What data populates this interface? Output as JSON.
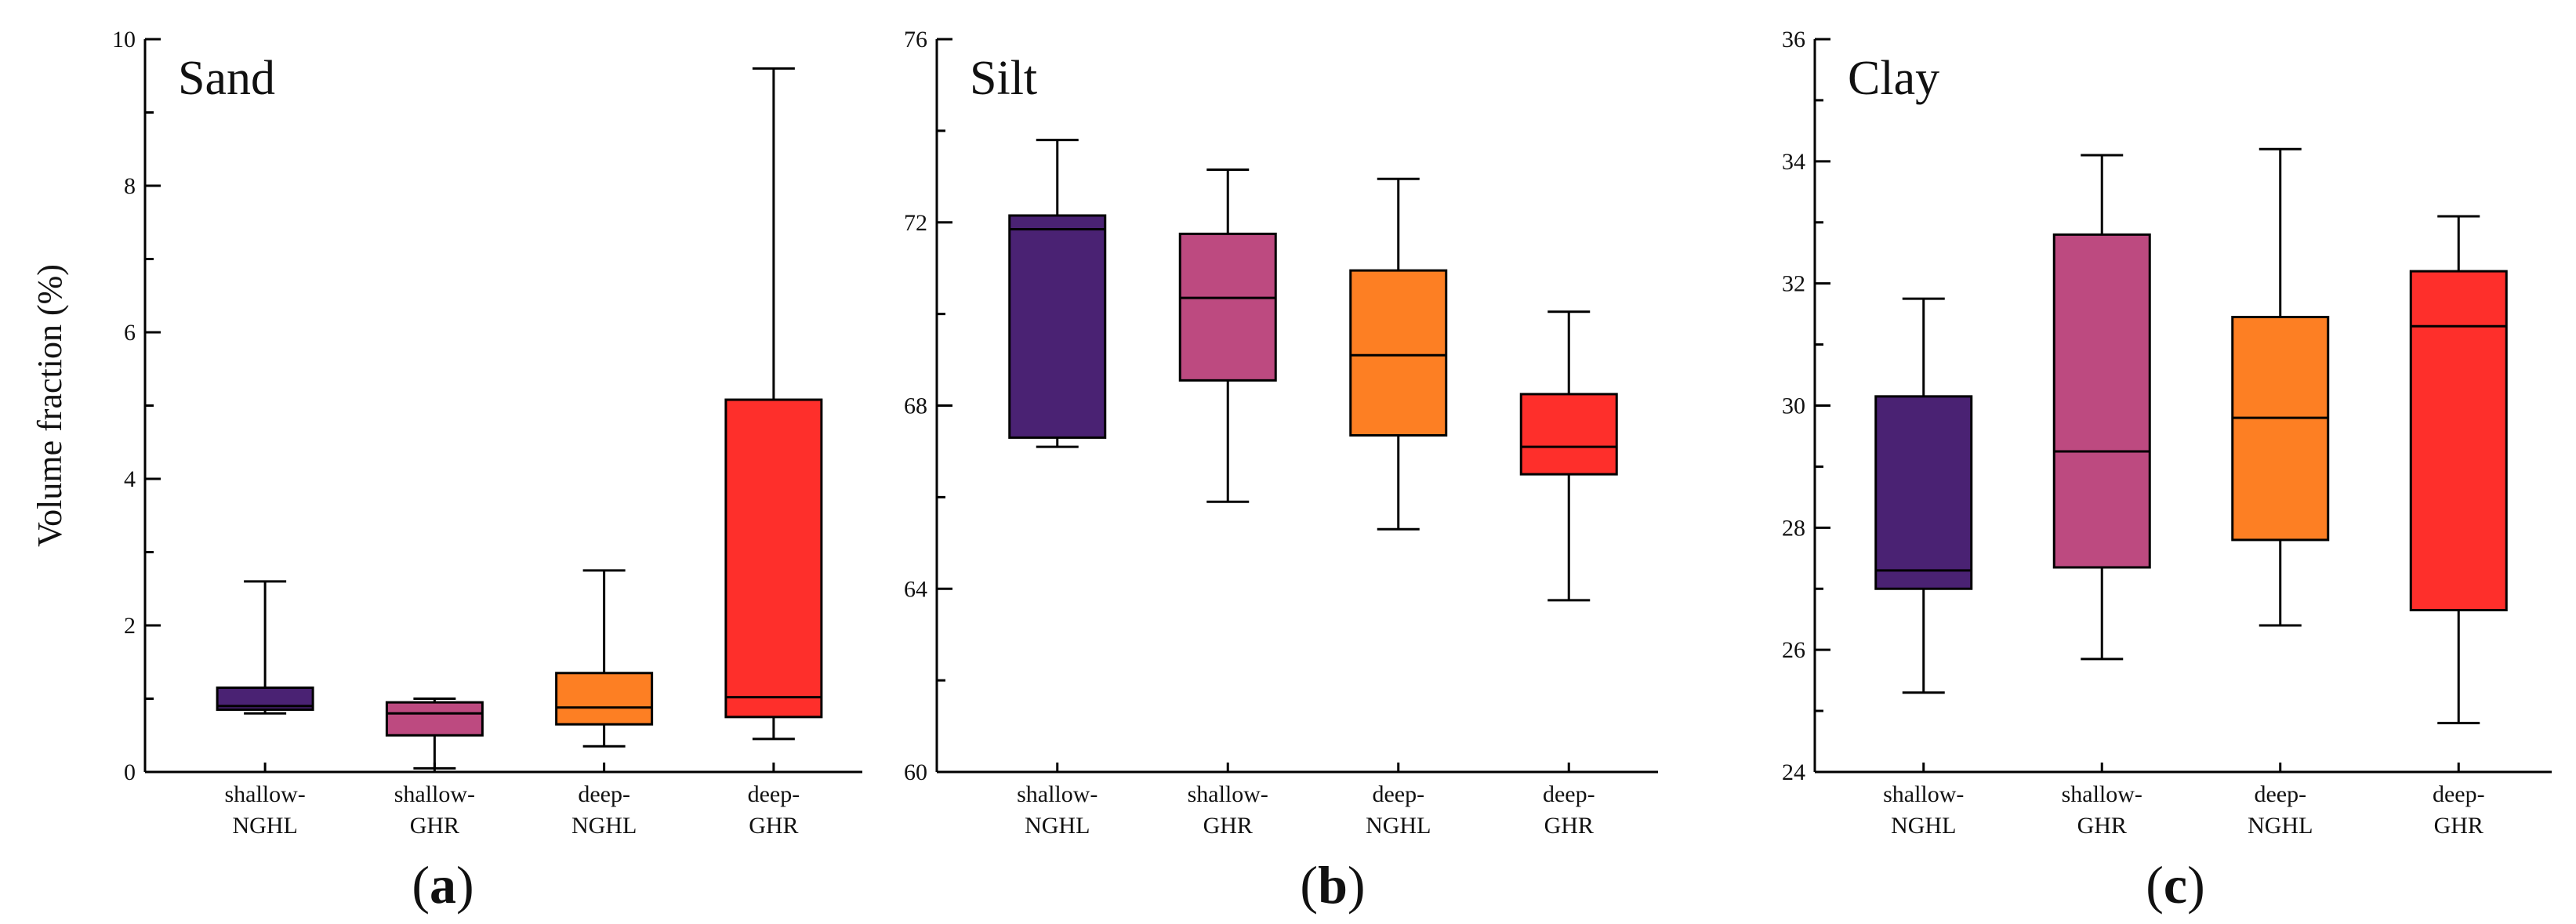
{
  "ylabel": "Volume fraction (%)",
  "colors": [
    "#4a2273",
    "#bd4a80",
    "#fd7f23",
    "#fe2f2b"
  ],
  "chart_data": [
    {
      "type": "box",
      "title": "Sand",
      "tag_open": "(",
      "tag_letter": "a",
      "tag_close": ")",
      "ylabel": "Volume fraction (%)",
      "ylim": [
        0,
        10
      ],
      "yticks": [
        0,
        2,
        4,
        6,
        8,
        10
      ],
      "ytick_labels": [
        "0",
        "2",
        "4",
        "6",
        "8",
        "10"
      ],
      "categories": [
        {
          "line1": "shallow-",
          "line2": "NGHL"
        },
        {
          "line1": "shallow-",
          "line2": "GHR"
        },
        {
          "line1": "deep-",
          "line2": "NGHL"
        },
        {
          "line1": "deep-",
          "line2": "GHR"
        }
      ],
      "boxes": [
        {
          "min": 0.8,
          "q1": 0.85,
          "median": 0.9,
          "q3": 1.15,
          "max": 2.6
        },
        {
          "min": 0.05,
          "q1": 0.5,
          "median": 0.8,
          "q3": 0.95,
          "max": 1.0
        },
        {
          "min": 0.35,
          "q1": 0.65,
          "median": 0.88,
          "q3": 1.35,
          "max": 2.75
        },
        {
          "min": 0.45,
          "q1": 0.75,
          "median": 1.02,
          "q3": 5.08,
          "max": 9.6
        }
      ]
    },
    {
      "type": "box",
      "title": "Silt",
      "tag_open": "(",
      "tag_letter": "b",
      "tag_close": ")",
      "ylim": [
        60,
        76
      ],
      "yticks": [
        60,
        64,
        68,
        72,
        76
      ],
      "ytick_labels": [
        "60",
        "64",
        "68",
        "72",
        "76"
      ],
      "categories": [
        {
          "line1": "shallow-",
          "line2": "NGHL"
        },
        {
          "line1": "shallow-",
          "line2": "GHR"
        },
        {
          "line1": "deep-",
          "line2": "NGHL"
        },
        {
          "line1": "deep-",
          "line2": "GHR"
        }
      ],
      "boxes": [
        {
          "min": 67.1,
          "q1": 67.3,
          "median": 71.85,
          "q3": 72.15,
          "max": 73.8
        },
        {
          "min": 65.9,
          "q1": 68.55,
          "median": 70.35,
          "q3": 71.75,
          "max": 73.15
        },
        {
          "min": 65.3,
          "q1": 67.35,
          "median": 69.1,
          "q3": 70.95,
          "max": 72.95
        },
        {
          "min": 63.75,
          "q1": 66.5,
          "median": 67.1,
          "q3": 68.25,
          "max": 70.05
        }
      ]
    },
    {
      "type": "box",
      "title": "Clay",
      "tag_open": "(",
      "tag_letter": "c",
      "tag_close": ")",
      "ylim": [
        24,
        36
      ],
      "yticks": [
        24,
        26,
        28,
        30,
        32,
        34,
        36
      ],
      "ytick_labels": [
        "24",
        "26",
        "28",
        "30",
        "32",
        "34",
        "36"
      ],
      "categories": [
        {
          "line1": "shallow-",
          "line2": "NGHL"
        },
        {
          "line1": "shallow-",
          "line2": "GHR"
        },
        {
          "line1": "deep-",
          "line2": "NGHL"
        },
        {
          "line1": "deep-",
          "line2": "GHR"
        }
      ],
      "boxes": [
        {
          "min": 25.3,
          "q1": 27.0,
          "median": 27.3,
          "q3": 30.15,
          "max": 31.75
        },
        {
          "min": 25.85,
          "q1": 27.35,
          "median": 29.25,
          "q3": 32.8,
          "max": 34.1
        },
        {
          "min": 26.4,
          "q1": 27.8,
          "median": 29.8,
          "q3": 31.45,
          "max": 34.2
        },
        {
          "min": 24.8,
          "q1": 26.65,
          "median": 31.3,
          "q3": 32.2,
          "max": 33.1
        }
      ]
    }
  ]
}
